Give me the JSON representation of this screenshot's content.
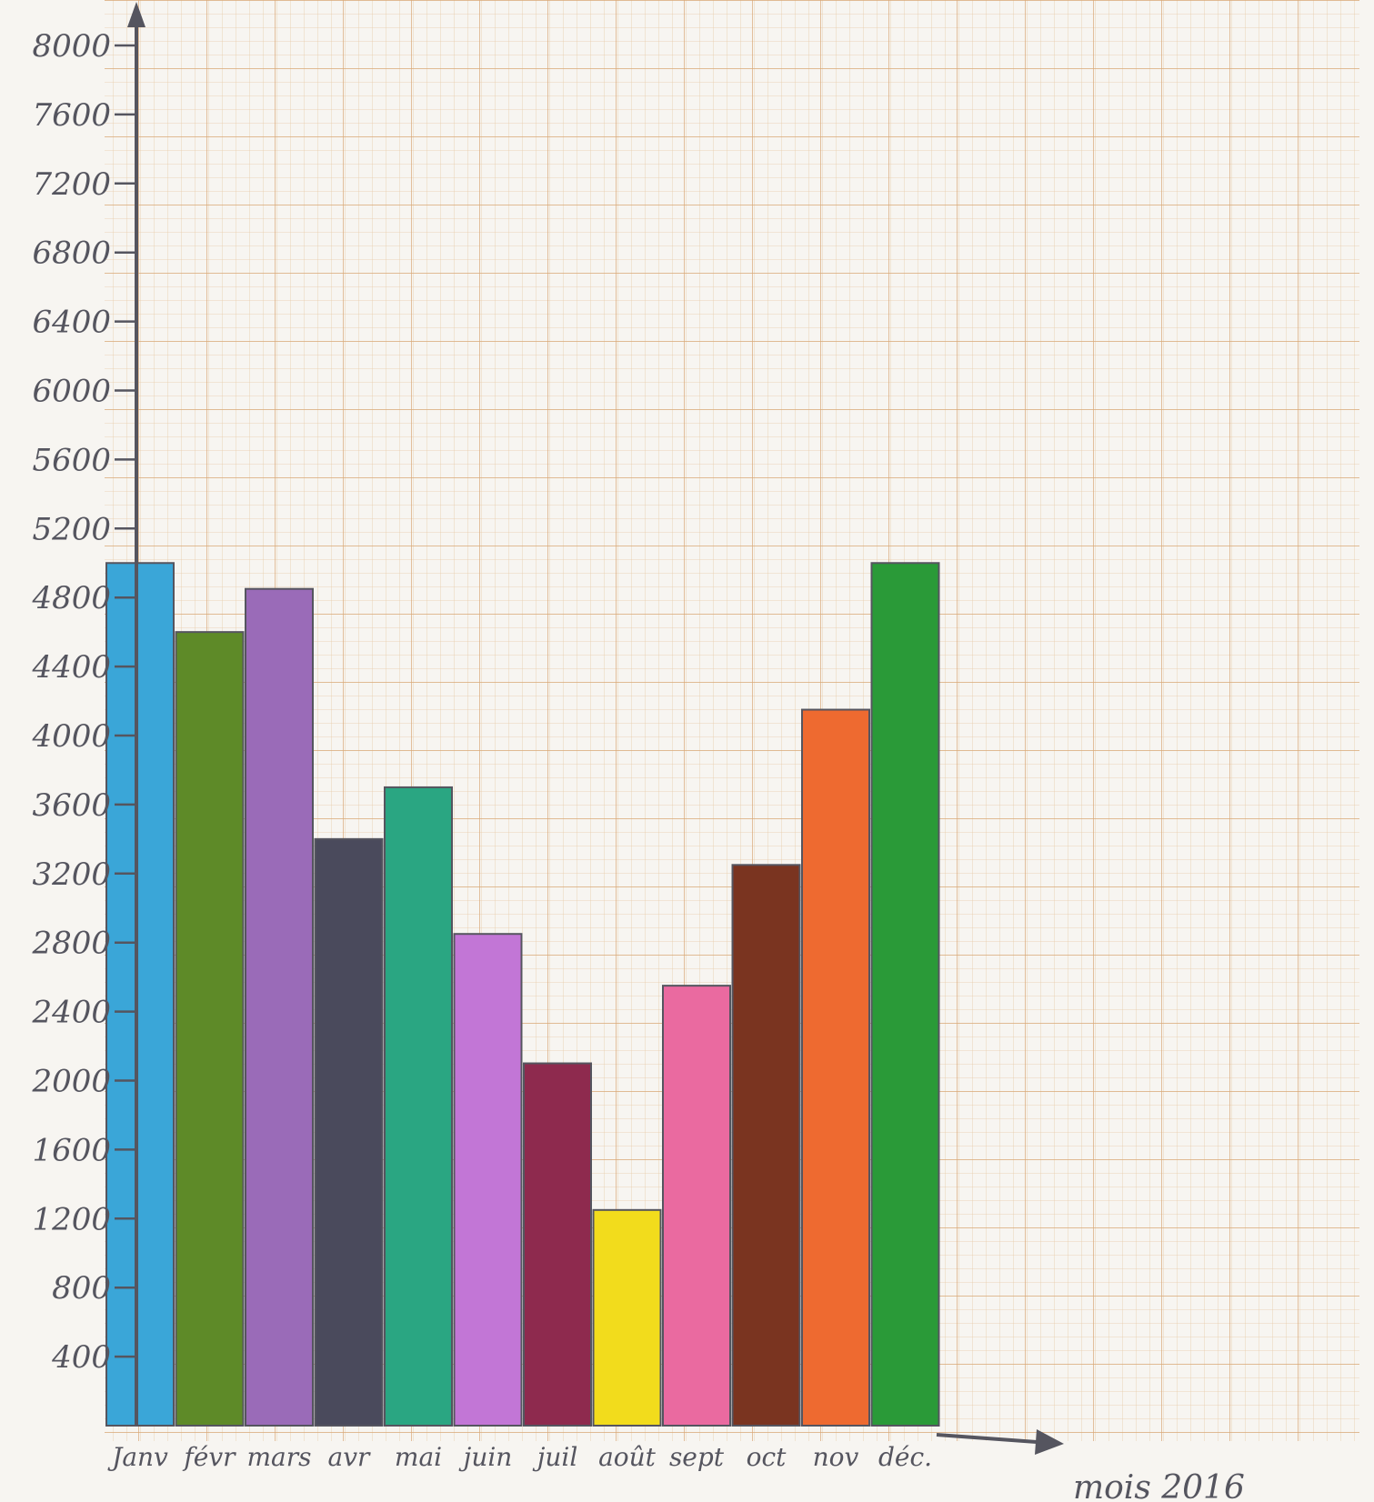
{
  "chart_data": {
    "type": "bar",
    "categories": [
      "Janv",
      "févr",
      "mars",
      "avr",
      "mai",
      "juin",
      "juil",
      "août",
      "sept",
      "oct",
      "nov",
      "déc."
    ],
    "series": [
      {
        "values": [
          5000,
          4600,
          4850,
          3400,
          3700,
          2850,
          2100,
          1250,
          2550,
          3250,
          4150,
          5000
        ]
      }
    ],
    "colors": [
      "#3aa6d8",
      "#5e8a28",
      "#9a6bb8",
      "#4a4a5c",
      "#2aa682",
      "#c276d6",
      "#8e2a4e",
      "#f2dc1c",
      "#ea6aa0",
      "#7a3420",
      "#ee6a30",
      "#2a9a38"
    ],
    "y_ticks": [
      "400",
      "800",
      "1200",
      "1600",
      "2000",
      "2400",
      "2800",
      "3200",
      "3600",
      "4000",
      "4400",
      "4800",
      "5200",
      "5600",
      "6000",
      "6400",
      "6800",
      "7200",
      "7600",
      "8000"
    ],
    "xlabel": "mois 2016",
    "ylabel": "",
    "ylim": [
      0,
      8000
    ],
    "grid": true,
    "legend": "none"
  }
}
